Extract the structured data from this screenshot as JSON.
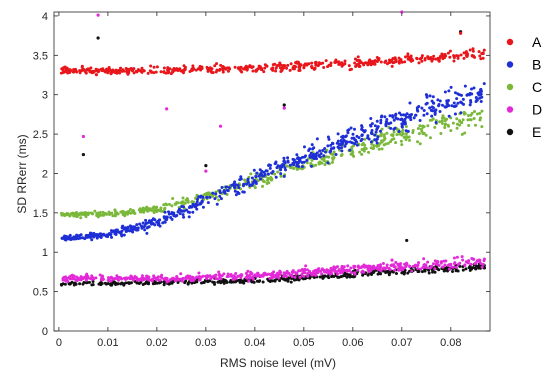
{
  "chart_data": {
    "type": "scatter",
    "xlabel": "RMS noise level (mV)",
    "ylabel": "SD RRerr (ms)",
    "xlim": [
      -0.001,
      0.088
    ],
    "ylim": [
      0,
      4.05
    ],
    "xticks": [
      0,
      0.01,
      0.02,
      0.03,
      0.04,
      0.05,
      0.06,
      0.07,
      0.08
    ],
    "xtick_labels": [
      "0",
      "0.01",
      "0.02",
      "0.03",
      "0.04",
      "0.05",
      "0.06",
      "0.07",
      "0.08"
    ],
    "yticks": [
      0,
      0.5,
      1,
      1.5,
      2,
      2.5,
      3,
      3.5,
      4
    ],
    "ytick_labels": [
      "0",
      "0.5",
      "1",
      "1.5",
      "2",
      "2.5",
      "3",
      "3.5",
      "4"
    ],
    "grid": false,
    "legend_position": "right",
    "series": [
      {
        "name": "A",
        "color": "#e8161b",
        "trend": [
          [
            0.0,
            3.3
          ],
          [
            0.02,
            3.31
          ],
          [
            0.04,
            3.34
          ],
          [
            0.06,
            3.4
          ],
          [
            0.087,
            3.52
          ]
        ],
        "outliers": [
          [
            0.082,
            3.78
          ]
        ]
      },
      {
        "name": "B",
        "color": "#1f2fd6",
        "trend": [
          [
            0.0,
            1.17
          ],
          [
            0.01,
            1.22
          ],
          [
            0.02,
            1.38
          ],
          [
            0.03,
            1.65
          ],
          [
            0.04,
            1.95
          ],
          [
            0.05,
            2.2
          ],
          [
            0.06,
            2.45
          ],
          [
            0.07,
            2.7
          ],
          [
            0.087,
            3.05
          ]
        ],
        "outliers": []
      },
      {
        "name": "C",
        "color": "#7ab83a",
        "trend": [
          [
            0.0,
            1.48
          ],
          [
            0.01,
            1.48
          ],
          [
            0.02,
            1.55
          ],
          [
            0.03,
            1.7
          ],
          [
            0.04,
            1.9
          ],
          [
            0.05,
            2.1
          ],
          [
            0.06,
            2.3
          ],
          [
            0.07,
            2.5
          ],
          [
            0.087,
            2.75
          ]
        ],
        "outliers": []
      },
      {
        "name": "D",
        "color": "#e22ad8",
        "trend": [
          [
            0.0,
            0.67
          ],
          [
            0.02,
            0.67
          ],
          [
            0.04,
            0.7
          ],
          [
            0.06,
            0.78
          ],
          [
            0.087,
            0.88
          ]
        ],
        "outliers": [
          [
            0.008,
            4.01
          ],
          [
            0.005,
            2.47
          ],
          [
            0.022,
            2.82
          ],
          [
            0.033,
            2.6
          ],
          [
            0.03,
            2.03
          ],
          [
            0.046,
            2.83
          ],
          [
            0.07,
            4.05
          ],
          [
            0.068,
            0.9
          ]
        ]
      },
      {
        "name": "E",
        "color": "#111111",
        "trend": [
          [
            0.0,
            0.6
          ],
          [
            0.02,
            0.61
          ],
          [
            0.04,
            0.64
          ],
          [
            0.06,
            0.72
          ],
          [
            0.087,
            0.82
          ]
        ],
        "outliers": [
          [
            0.008,
            3.72
          ],
          [
            0.005,
            2.24
          ],
          [
            0.03,
            2.1
          ],
          [
            0.046,
            2.87
          ],
          [
            0.071,
            1.15
          ],
          [
            0.082,
            3.8
          ]
        ]
      }
    ]
  }
}
